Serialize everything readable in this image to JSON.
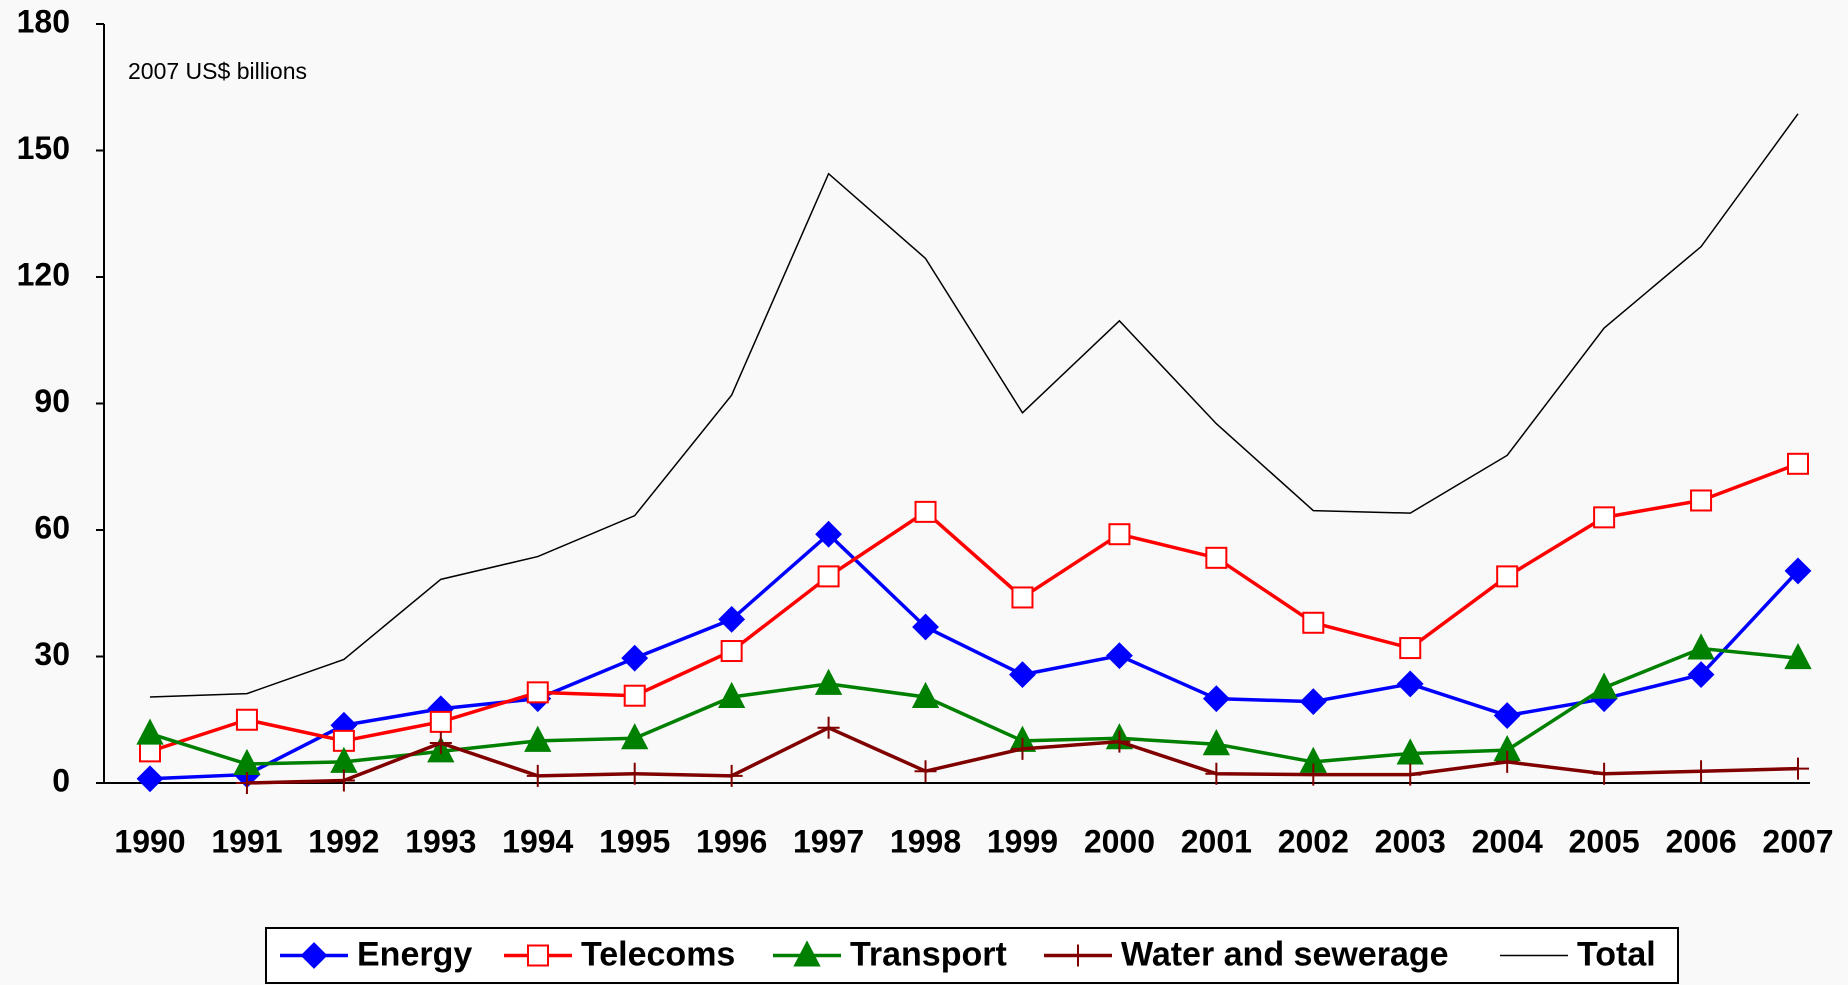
{
  "chart_data": {
    "type": "line",
    "annotation": "2007 US$ billions",
    "categories": [
      "1990",
      "1991",
      "1992",
      "1993",
      "1994",
      "1995",
      "1996",
      "1997",
      "1998",
      "1999",
      "2000",
      "2001",
      "2002",
      "2003",
      "2004",
      "2005",
      "2006",
      "2007"
    ],
    "series": [
      {
        "name": "Energy",
        "color": "#0000ff",
        "marker": "diamond",
        "values": [
          1,
          2,
          13.7,
          17.6,
          20,
          29.6,
          38.8,
          59,
          37,
          25.7,
          30.2,
          20,
          19.3,
          23.5,
          16,
          20,
          25.7,
          50.3
        ]
      },
      {
        "name": "Telecoms",
        "color": "#ff0000",
        "marker": "square-open",
        "values": [
          7.5,
          15,
          10,
          14.5,
          21.5,
          20.7,
          31.3,
          49,
          64.3,
          44,
          59,
          53.4,
          38,
          32,
          49,
          63,
          67,
          75.7
        ]
      },
      {
        "name": "Transport",
        "color": "#008000",
        "marker": "triangle",
        "values": [
          11.7,
          4.5,
          5,
          7.5,
          10,
          10.6,
          20.4,
          23.5,
          20.4,
          10,
          10.6,
          9.2,
          5,
          7,
          7.8,
          22.6,
          31.9,
          29.6
        ]
      },
      {
        "name": "Water and sewerage",
        "color": "#800000",
        "marker": "plus",
        "values": [
          null,
          0,
          0.6,
          9.5,
          1.7,
          2.2,
          1.7,
          13.1,
          2.8,
          8.1,
          9.8,
          2.2,
          2,
          2,
          5,
          2.2,
          2.8,
          3.4
        ]
      },
      {
        "name": "Total",
        "color": "#000000",
        "marker": "none",
        "values": [
          20.4,
          21.2,
          29.3,
          48.3,
          53.7,
          63.4,
          92,
          144.5,
          124.4,
          87.8,
          109.6,
          85.2,
          64.6,
          64,
          77.7,
          107.9,
          127.2,
          158.7
        ]
      }
    ],
    "ylim": [
      0,
      180
    ],
    "yticks": [
      0,
      30,
      60,
      90,
      120,
      150,
      180
    ],
    "legend": "bottom"
  }
}
